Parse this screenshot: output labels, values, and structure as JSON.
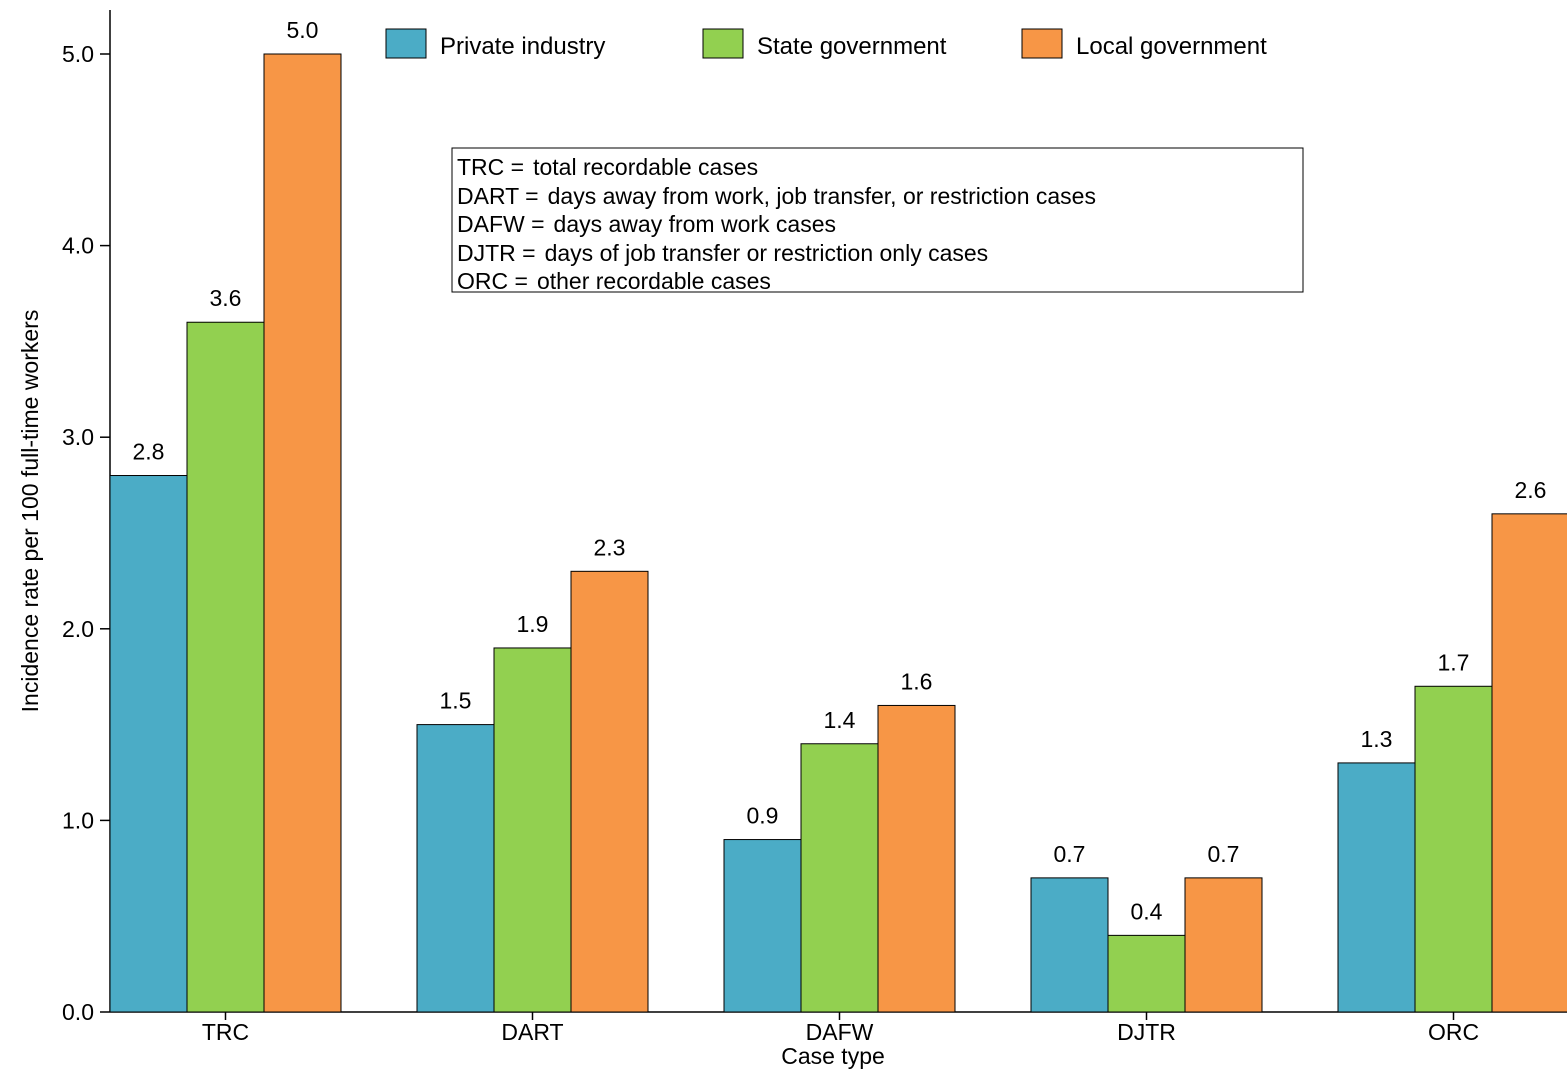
{
  "chart_data": {
    "type": "bar",
    "title": "",
    "xlabel": "Case type",
    "ylabel": "Incidence rate per 100 full-time workers",
    "ylim": [
      0,
      5.0
    ],
    "yticks": [
      "0.0",
      "1.0",
      "2.0",
      "3.0",
      "4.0",
      "5.0"
    ],
    "ytick_values": [
      0,
      1,
      2,
      3,
      4,
      5
    ],
    "grid": false,
    "legend_position": "top",
    "categories": [
      "TRC",
      "DART",
      "DAFW",
      "DJTR",
      "ORC"
    ],
    "series": [
      {
        "name": "Private industry",
        "color": "#4bacc6",
        "values": [
          2.8,
          1.5,
          0.9,
          0.7,
          1.3
        ],
        "labels": [
          "2.8",
          "1.5",
          "0.9",
          "0.7",
          "1.3"
        ]
      },
      {
        "name": "State government",
        "color": "#92d050",
        "values": [
          3.6,
          1.9,
          1.4,
          0.4,
          1.7
        ],
        "labels": [
          "3.6",
          "1.9",
          "1.4",
          "0.4",
          "1.7"
        ]
      },
      {
        "name": "Local government",
        "color": "#f79646",
        "values": [
          5.0,
          2.3,
          1.6,
          0.7,
          2.6
        ],
        "labels": [
          "5.0",
          "2.3",
          "1.6",
          "0.7",
          "2.6"
        ]
      }
    ],
    "annotation": {
      "lines": [
        {
          "term": "TRC =",
          "definition": "total recordable cases"
        },
        {
          "term": "DART =",
          "definition": "days away from work, job transfer, or restriction cases"
        },
        {
          "term": "DAFW =",
          "definition": "days away from work cases"
        },
        {
          "term": "DJTR =",
          "definition": "days of job transfer or restriction only cases"
        },
        {
          "term": "ORC =",
          "definition": "other recordable cases"
        }
      ]
    }
  }
}
